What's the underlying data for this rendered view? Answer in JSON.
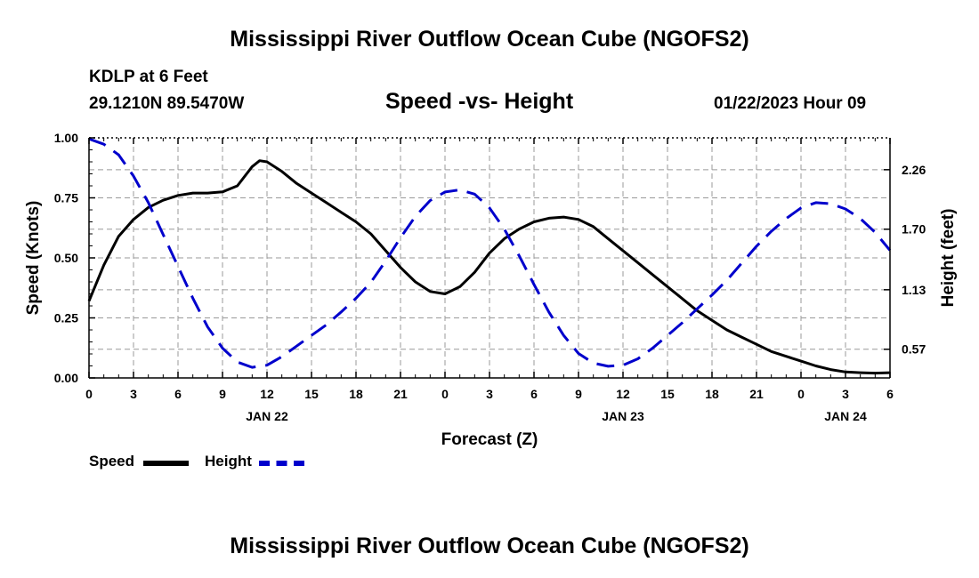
{
  "page": {
    "title_top": "Mississippi River Outflow Ocean Cube (NGOFS2)",
    "title_bottom": "Mississippi River Outflow Ocean Cube (NGOFS2)",
    "station": "KDLP at 6 Feet",
    "coords": "29.1210N  89.5470W",
    "datetime": "01/22/2023 Hour 09"
  },
  "colors": {
    "speed": "#000000",
    "height": "#0000cc",
    "grid": "#999999"
  },
  "chart_data": {
    "type": "line",
    "title": "Speed -vs- Height",
    "xlabel": "Forecast (Z)",
    "ylabel": "Speed (Knots)",
    "y2label": "Height (feet)",
    "xlim": [
      0,
      54
    ],
    "ylim": [
      0,
      1
    ],
    "y2lim": [
      0.3,
      2.56
    ],
    "x_ticks": [
      0,
      3,
      6,
      9,
      12,
      15,
      18,
      21,
      24,
      27,
      30,
      33,
      36,
      39,
      42,
      45,
      48,
      51,
      54
    ],
    "x_tick_labels": [
      "0",
      "3",
      "6",
      "9",
      "12",
      "15",
      "18",
      "21",
      "0",
      "3",
      "6",
      "9",
      "12",
      "15",
      "18",
      "21",
      "0",
      "3",
      "6"
    ],
    "day_labels": [
      {
        "x": 12,
        "label": "JAN 22"
      },
      {
        "x": 36,
        "label": "JAN 23"
      },
      {
        "x": 51,
        "label": "JAN 24"
      }
    ],
    "y_ticks": [
      0,
      0.25,
      0.5,
      0.75,
      1.0
    ],
    "y_tick_labels": [
      "0.00",
      "0.25",
      "0.50",
      "0.75",
      "1.00"
    ],
    "y2_ticks": [
      0.57,
      1.13,
      1.7,
      2.26
    ],
    "y2_tick_labels": [
      "0.57",
      "1.13",
      "1.70",
      "2.26"
    ],
    "series": [
      {
        "name": "Speed",
        "axis": "left",
        "style": "solid",
        "x": [
          0,
          1,
          2,
          3,
          4,
          5,
          6,
          7,
          8,
          9,
          10,
          11,
          11.5,
          12,
          13,
          14,
          15,
          16,
          17,
          18,
          19,
          20,
          21,
          22,
          23,
          24,
          25,
          26,
          27,
          28,
          29,
          30,
          31,
          32,
          33,
          34,
          35,
          36,
          37,
          38,
          39,
          40,
          41,
          42,
          43,
          44,
          45,
          46,
          47,
          48,
          49,
          50,
          51,
          52,
          53,
          54
        ],
        "values": [
          0.32,
          0.47,
          0.59,
          0.66,
          0.71,
          0.74,
          0.76,
          0.77,
          0.77,
          0.775,
          0.8,
          0.88,
          0.905,
          0.9,
          0.86,
          0.81,
          0.77,
          0.73,
          0.69,
          0.65,
          0.6,
          0.53,
          0.46,
          0.4,
          0.36,
          0.35,
          0.38,
          0.44,
          0.52,
          0.58,
          0.62,
          0.65,
          0.665,
          0.67,
          0.66,
          0.63,
          0.58,
          0.53,
          0.48,
          0.43,
          0.38,
          0.33,
          0.28,
          0.24,
          0.2,
          0.17,
          0.14,
          0.11,
          0.09,
          0.07,
          0.05,
          0.035,
          0.025,
          0.022,
          0.02,
          0.022
        ]
      },
      {
        "name": "Height",
        "axis": "right",
        "style": "dashed",
        "x": [
          0,
          1,
          2,
          3,
          4,
          5,
          6,
          7,
          8,
          9,
          10,
          11,
          12,
          13,
          14,
          15,
          16,
          17,
          18,
          19,
          20,
          21,
          22,
          23,
          24,
          25,
          26,
          27,
          28,
          29,
          30,
          31,
          32,
          33,
          34,
          35,
          36,
          37,
          38,
          39,
          40,
          41,
          42,
          43,
          44,
          45,
          46,
          47,
          48,
          49,
          50,
          51,
          52,
          53,
          54
        ],
        "values": [
          2.55,
          2.5,
          2.4,
          2.2,
          1.95,
          1.65,
          1.35,
          1.05,
          0.78,
          0.58,
          0.45,
          0.4,
          0.42,
          0.5,
          0.6,
          0.7,
          0.8,
          0.92,
          1.05,
          1.2,
          1.4,
          1.62,
          1.82,
          1.97,
          2.05,
          2.07,
          2.03,
          1.9,
          1.7,
          1.45,
          1.18,
          0.92,
          0.7,
          0.53,
          0.44,
          0.41,
          0.42,
          0.48,
          0.58,
          0.7,
          0.82,
          0.95,
          1.08,
          1.22,
          1.38,
          1.54,
          1.68,
          1.8,
          1.9,
          1.95,
          1.94,
          1.89,
          1.8,
          1.67,
          1.5
        ]
      }
    ],
    "legend": [
      {
        "name": "Speed",
        "style": "solid"
      },
      {
        "name": "Height",
        "style": "dashed"
      }
    ],
    "grid": true
  }
}
